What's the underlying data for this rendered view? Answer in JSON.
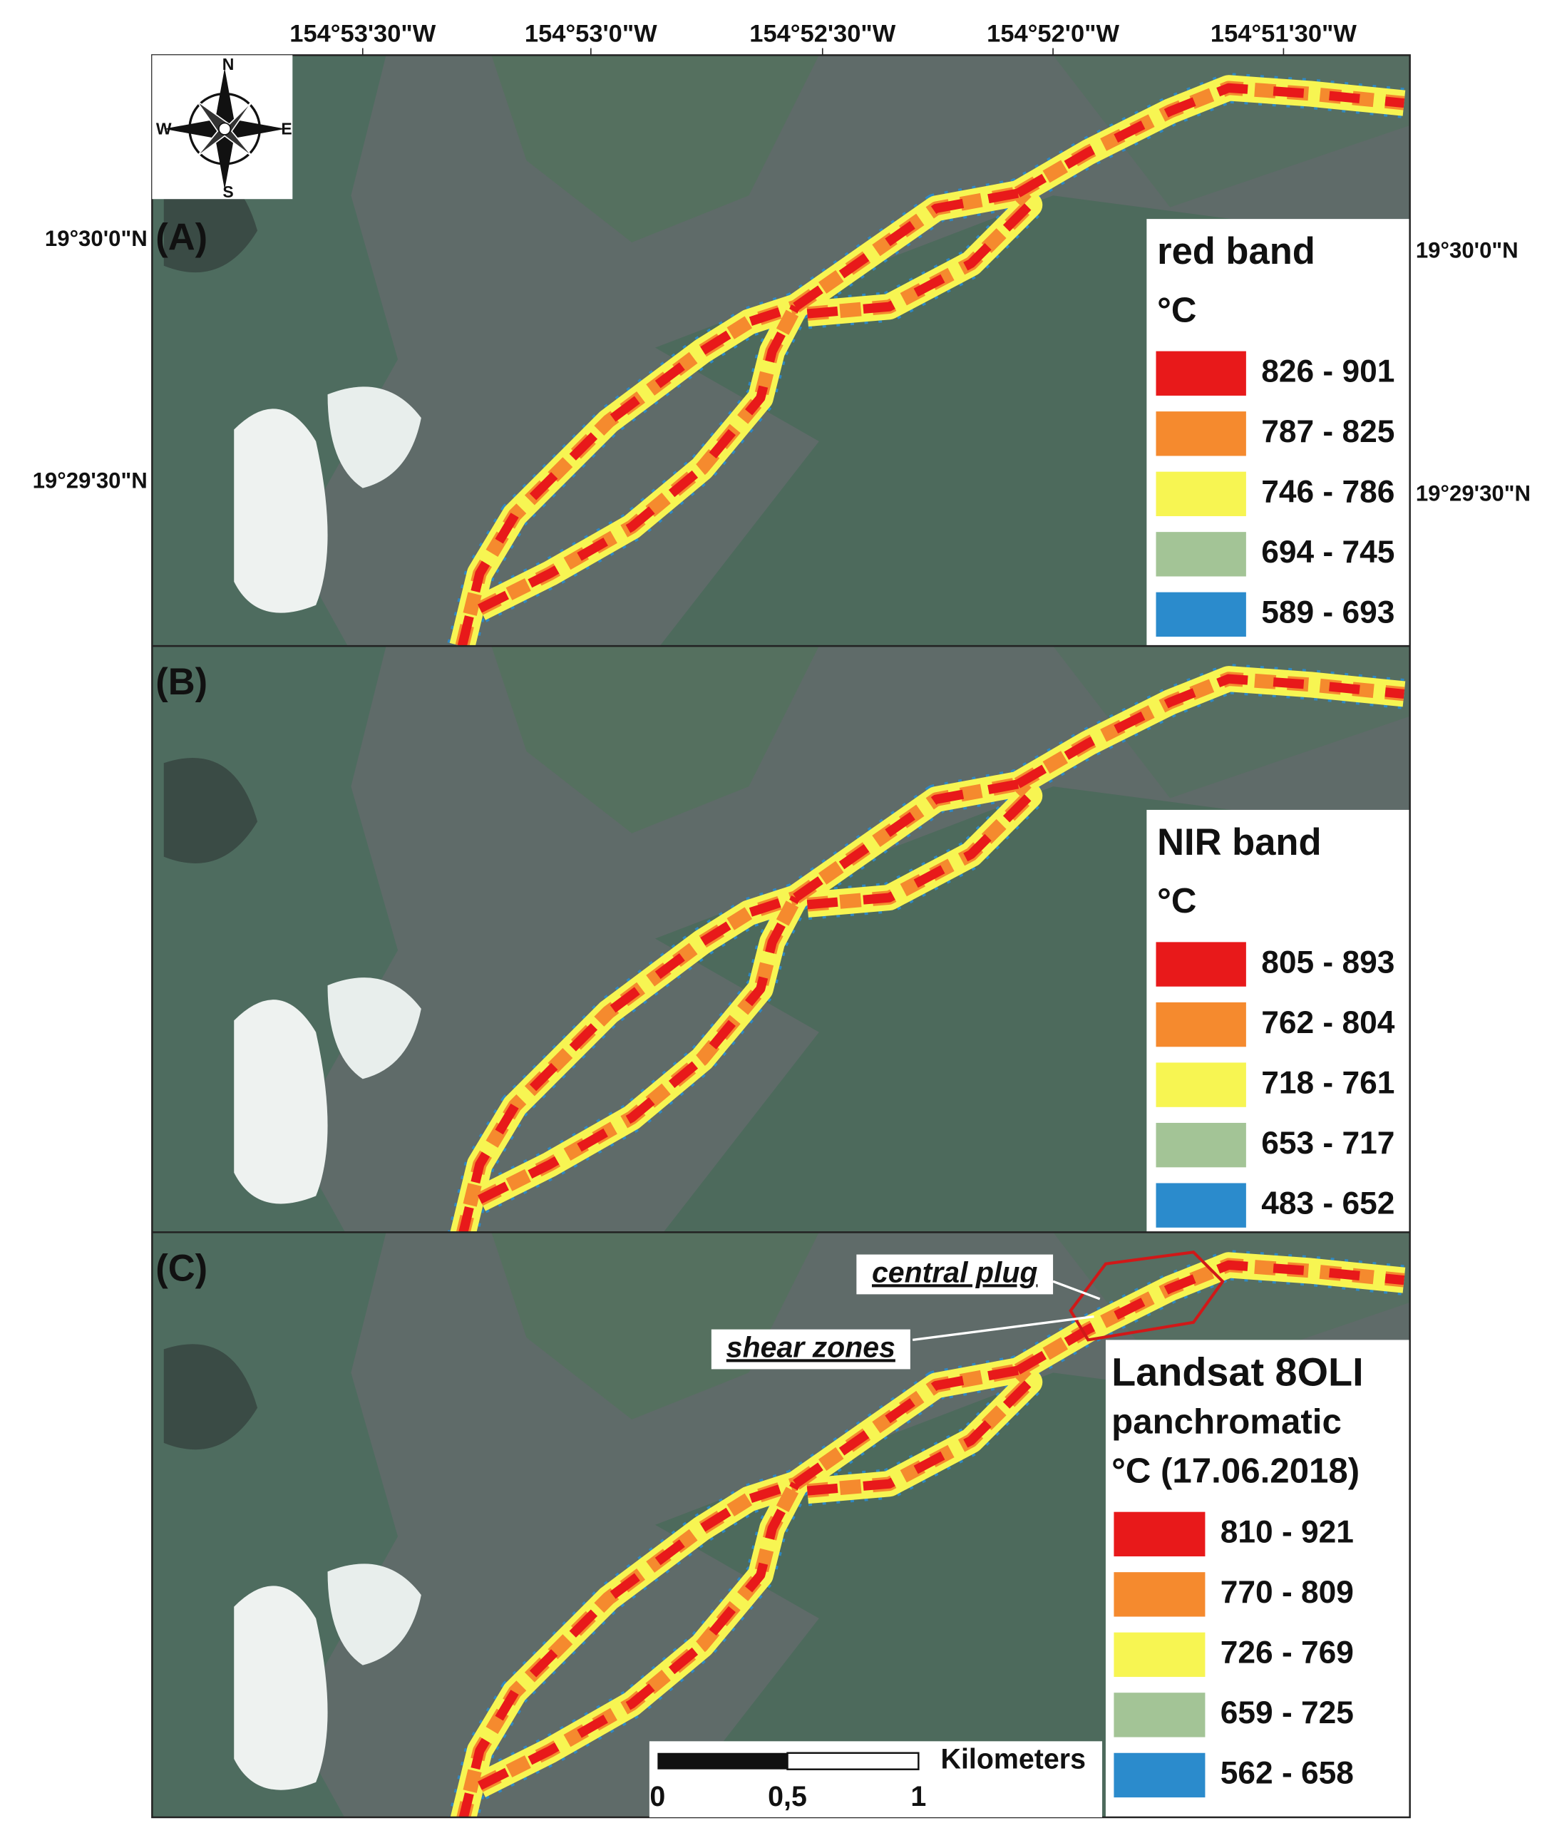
{
  "coordinates": {
    "top": [
      "154°53'30\"W",
      "154°53'0\"W",
      "154°52'30\"W",
      "154°52'0\"W",
      "154°51'30\"W"
    ],
    "left": [
      "19°30'0\"N",
      "19°29'30\"N"
    ],
    "right": [
      "19°30'0\"N",
      "19°29'30\"N"
    ]
  },
  "compass": {
    "n": "N",
    "s": "S",
    "e": "E",
    "w": "W"
  },
  "panels": [
    {
      "label": "(A)",
      "legend": {
        "title": [
          "red band"
        ],
        "unit": "°C",
        "classes": [
          {
            "range": "826 - 901",
            "color": "#e8191a"
          },
          {
            "range": "787 - 825",
            "color": "#f58a2e"
          },
          {
            "range": "746 - 786",
            "color": "#f7f552"
          },
          {
            "range": "694 - 745",
            "color": "#a3c496"
          },
          {
            "range": "589 - 693",
            "color": "#2b8bcc"
          }
        ]
      }
    },
    {
      "label": "(B)",
      "legend": {
        "title": [
          "NIR band"
        ],
        "unit": "°C",
        "classes": [
          {
            "range": "805 - 893",
            "color": "#e8191a"
          },
          {
            "range": "762 - 804",
            "color": "#f58a2e"
          },
          {
            "range": "718 - 761",
            "color": "#f7f552"
          },
          {
            "range": "653 - 717",
            "color": "#a3c496"
          },
          {
            "range": "483 - 652",
            "color": "#2b8bcc"
          }
        ]
      }
    },
    {
      "label": "(C)",
      "legend": {
        "title": [
          "Landsat 8OLI",
          "panchromatic"
        ],
        "unit": "°C (17.06.2018)",
        "classes": [
          {
            "range": "810 - 921",
            "color": "#e8191a"
          },
          {
            "range": "770 - 809",
            "color": "#f58a2e"
          },
          {
            "range": "726 - 769",
            "color": "#f7f552"
          },
          {
            "range": "659 - 725",
            "color": "#a3c496"
          },
          {
            "range": "562 - 658",
            "color": "#2b8bcc"
          }
        ]
      },
      "annotations": [
        "central plug",
        "shear zones"
      ]
    }
  ],
  "scale_bar": {
    "unit": "Kilometers",
    "labels": [
      "0",
      "0,5",
      "1"
    ]
  }
}
